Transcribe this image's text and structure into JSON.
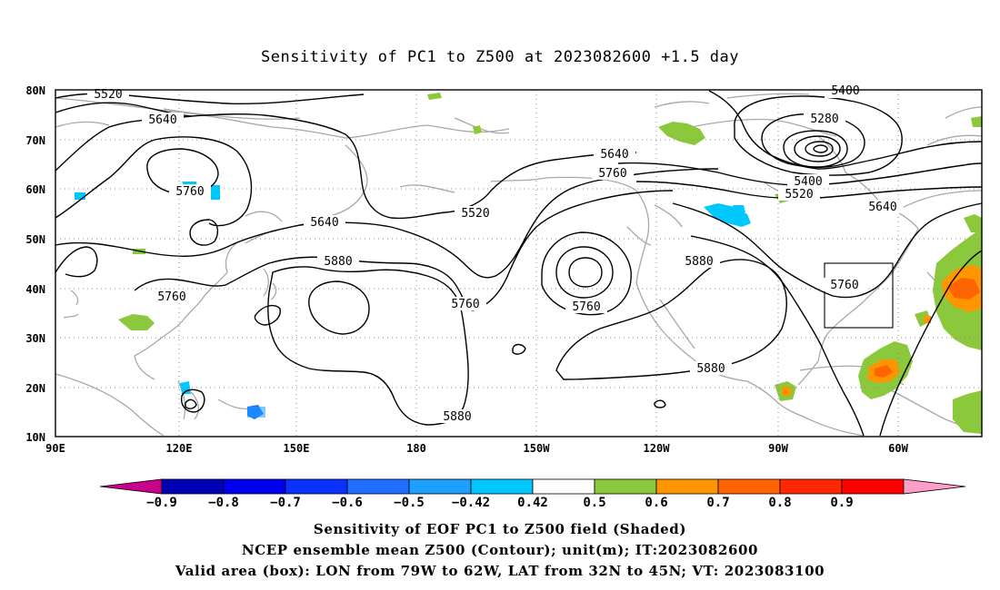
{
  "title": "Sensitivity of PC1 to Z500 at 2023082600 +1.5 day",
  "lat_labels": [
    "80N",
    "70N",
    "60N",
    "50N",
    "40N",
    "30N",
    "20N",
    "10N"
  ],
  "lon_labels": [
    "90E",
    "120E",
    "150E",
    "180",
    "150W",
    "120W",
    "90W",
    "60W"
  ],
  "colorbar": {
    "ticks": [
      "-0.9",
      "-0.8",
      "-0.7",
      "-0.6",
      "-0.5",
      "-0.42",
      "0.42",
      "0.5",
      "0.6",
      "0.7",
      "0.8",
      "0.9"
    ],
    "colors": [
      "#c8008c",
      "#0000b4",
      "#0000ee",
      "#0a32ff",
      "#1e6eff",
      "#1ea0ff",
      "#00c8ff",
      "#ffffff",
      "#8cc83c",
      "#ff9600",
      "#ff6400",
      "#ff2800",
      "#ff0000",
      "#ff9ec8"
    ]
  },
  "caption": {
    "line1": "Sensitivity of EOF PC1 to Z500 field (Shaded)",
    "line2": "NCEP ensemble mean Z500 (Contour); unit(m); IT:2023082600",
    "line3": "Valid area (box): LON from 79W to 62W, LAT from 32N to 45N; VT: 2023083100"
  },
  "contour_labels": [
    {
      "text": "5520"
    },
    {
      "text": "5640"
    },
    {
      "text": "5760"
    },
    {
      "text": "5640"
    },
    {
      "text": "5880"
    },
    {
      "text": "5760"
    },
    {
      "text": "5520"
    },
    {
      "text": "5760"
    },
    {
      "text": "5640"
    },
    {
      "text": "5760"
    },
    {
      "text": "5760"
    },
    {
      "text": "5880"
    },
    {
      "text": "5880"
    },
    {
      "text": "5880"
    },
    {
      "text": "5400"
    },
    {
      "text": "5280"
    },
    {
      "text": "5400"
    },
    {
      "text": "5520"
    },
    {
      "text": "5640"
    },
    {
      "text": "5760"
    }
  ]
}
